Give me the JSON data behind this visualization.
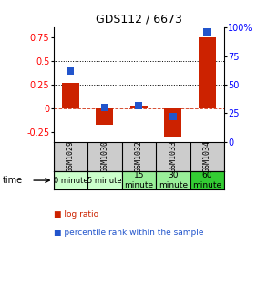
{
  "title": "GDS112 / 6673",
  "samples": [
    "GSM1029",
    "GSM1030",
    "GSM1032",
    "GSM1033",
    "GSM1034"
  ],
  "time_labels": [
    "0 minute",
    "5 minute",
    "15\nminute",
    "30\nminute",
    "60\nminute"
  ],
  "time_colors": [
    "#ccffcc",
    "#ccffcc",
    "#99ee99",
    "#99ee99",
    "#33cc33"
  ],
  "log_ratios": [
    0.27,
    -0.17,
    0.03,
    -0.29,
    0.75
  ],
  "percentile_ranks": [
    62,
    30,
    32,
    22,
    96
  ],
  "bar_color": "#cc2200",
  "dot_color": "#2255cc",
  "ylim_left": [
    -0.35,
    0.85
  ],
  "ylim_right": [
    0,
    100
  ],
  "yticks_left": [
    -0.25,
    0.0,
    0.25,
    0.5,
    0.75
  ],
  "yticks_right": [
    0,
    25,
    50,
    75,
    100
  ],
  "hline_y": [
    0.25,
    0.5
  ],
  "zero_line_y": 0.0,
  "bar_width": 0.5,
  "dot_size": 30,
  "background_color": "#ffffff",
  "plot_bg": "#ffffff",
  "sample_bg": "#cccccc"
}
